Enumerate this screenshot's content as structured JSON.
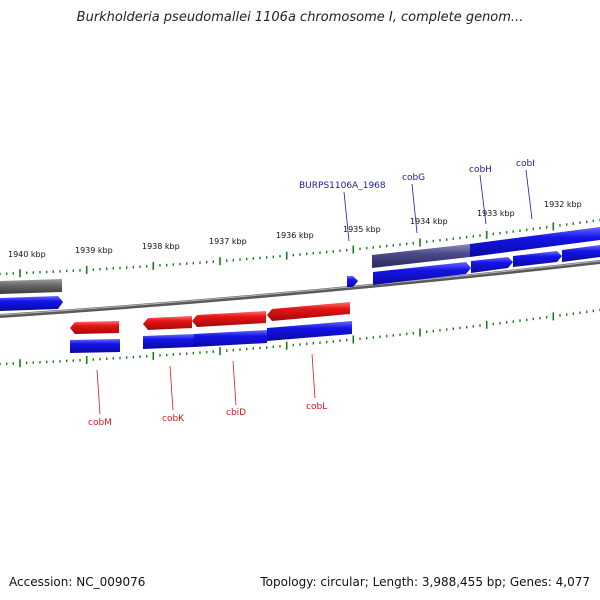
{
  "title": "Burkholderia pseudomallei 1106a chromosome I, complete genom...",
  "footer": {
    "accession": "Accession: NC_009076",
    "summary": "Topology: circular; Length: 3,988,455 bp; Genes: 4,077"
  },
  "ruler_labels": [
    "1940 kbp",
    "1939 kbp",
    "1938 kbp",
    "1937 kbp",
    "1936 kbp",
    "1935 kbp",
    "1934 kbp",
    "1933 kbp",
    "1932 kbp"
  ],
  "genes_forward": [
    "BURPS1106A_1968",
    "cobG",
    "cobH",
    "cobI"
  ],
  "genes_reverse": [
    "cobM",
    "cobK",
    "cbiD",
    "cobL"
  ],
  "colors": {
    "forward": "#1010e0",
    "reverse": "#e01010",
    "selected": "#44448a",
    "other": "#707070",
    "tick": "#1a7a1a",
    "forward_label": "#1a1aa0",
    "reverse_label": "#d41a1a"
  }
}
